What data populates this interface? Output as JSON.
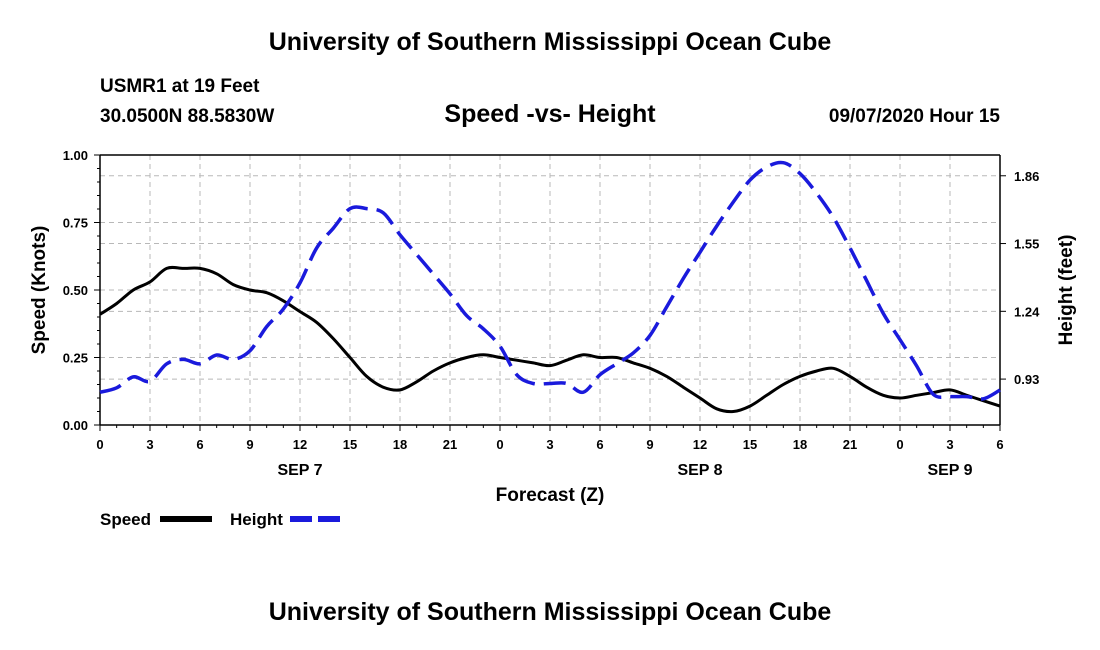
{
  "header": {
    "title_top": "University of Southern Mississippi Ocean Cube",
    "station": "USMR1 at 19 Feet",
    "coords": "30.0500N 88.5830W",
    "subtitle": "Speed -vs- Height",
    "datetime": "09/07/2020 Hour 15",
    "title_bottom": "University of Southern Mississippi Ocean Cube"
  },
  "colors": {
    "speed": "#000000",
    "height": "#1a1adc",
    "grid": "#b8b8b8"
  },
  "chart_data": {
    "type": "line",
    "title": "Speed -vs- Height",
    "xlabel": "Forecast (Z)",
    "ylabel": "Speed (Knots)",
    "y2label": "Height (feet)",
    "xlim": [
      0,
      54
    ],
    "ylim": [
      0,
      1
    ],
    "y2lim": [
      0.72,
      1.955
    ],
    "grid": true,
    "x_tick_values": [
      0,
      3,
      6,
      9,
      12,
      15,
      18,
      21,
      24,
      27,
      30,
      33,
      36,
      39,
      42,
      45,
      48,
      51,
      54
    ],
    "x_tick_labels": [
      "0",
      "3",
      "6",
      "9",
      "12",
      "15",
      "18",
      "21",
      "0",
      "3",
      "6",
      "9",
      "12",
      "15",
      "18",
      "21",
      "0",
      "3",
      "6"
    ],
    "day_labels": [
      {
        "x": 12,
        "label": "SEP 7"
      },
      {
        "x": 36,
        "label": "SEP 8"
      },
      {
        "x": 51,
        "label": "SEP 9"
      }
    ],
    "y_ticks": [
      "0.00",
      "0.25",
      "0.50",
      "0.75",
      "1.00"
    ],
    "y_tick_values": [
      0,
      0.25,
      0.5,
      0.75,
      1.0
    ],
    "y2_ticks": [
      "0.93",
      "1.24",
      "1.55",
      "1.86"
    ],
    "y2_tick_values": [
      0.93,
      1.24,
      1.55,
      1.86
    ],
    "series": [
      {
        "name": "Speed",
        "axis": "left",
        "style": "solid",
        "x": [
          0,
          1,
          2,
          3,
          4,
          5,
          6,
          7,
          8,
          9,
          10,
          11,
          12,
          13,
          14,
          15,
          16,
          17,
          18,
          19,
          20,
          21,
          22,
          23,
          24,
          25,
          26,
          27,
          28,
          29,
          30,
          31,
          32,
          33,
          34,
          35,
          36,
          37,
          38,
          39,
          40,
          41,
          42,
          43,
          44,
          45,
          46,
          47,
          48,
          49,
          50,
          51,
          52,
          53,
          54
        ],
        "values": [
          0.41,
          0.45,
          0.5,
          0.53,
          0.58,
          0.58,
          0.58,
          0.56,
          0.52,
          0.5,
          0.49,
          0.46,
          0.42,
          0.38,
          0.32,
          0.25,
          0.18,
          0.14,
          0.13,
          0.16,
          0.2,
          0.23,
          0.25,
          0.26,
          0.25,
          0.24,
          0.23,
          0.22,
          0.24,
          0.26,
          0.25,
          0.25,
          0.23,
          0.21,
          0.18,
          0.14,
          0.1,
          0.06,
          0.05,
          0.07,
          0.11,
          0.15,
          0.18,
          0.2,
          0.21,
          0.18,
          0.14,
          0.11,
          0.1,
          0.11,
          0.12,
          0.13,
          0.11,
          0.09,
          0.07
        ]
      },
      {
        "name": "Height",
        "axis": "right",
        "style": "dashed",
        "x": [
          0,
          1,
          2,
          3,
          4,
          5,
          6,
          7,
          8,
          9,
          10,
          11,
          12,
          13,
          14,
          15,
          16,
          17,
          18,
          19,
          20,
          21,
          22,
          23,
          24,
          25,
          26,
          27,
          28,
          29,
          30,
          31,
          32,
          33,
          34,
          35,
          36,
          37,
          38,
          39,
          40,
          41,
          42,
          43,
          44,
          45,
          46,
          47,
          48,
          49,
          50,
          51,
          52,
          53,
          54
        ],
        "values": [
          0.87,
          0.89,
          0.94,
          0.92,
          1.0,
          1.02,
          1.0,
          1.04,
          1.02,
          1.06,
          1.17,
          1.25,
          1.37,
          1.53,
          1.62,
          1.71,
          1.71,
          1.69,
          1.59,
          1.5,
          1.41,
          1.32,
          1.22,
          1.16,
          1.08,
          0.95,
          0.91,
          0.91,
          0.91,
          0.87,
          0.95,
          1.0,
          1.05,
          1.13,
          1.26,
          1.39,
          1.51,
          1.63,
          1.74,
          1.84,
          1.9,
          1.92,
          1.87,
          1.78,
          1.67,
          1.53,
          1.38,
          1.23,
          1.11,
          0.99,
          0.86,
          0.85,
          0.85,
          0.84,
          0.88
        ]
      }
    ],
    "legend": [
      {
        "label": "Speed",
        "style": "solid"
      },
      {
        "label": "Height",
        "style": "dashed"
      }
    ],
    "legend_position": "bottom-left"
  }
}
